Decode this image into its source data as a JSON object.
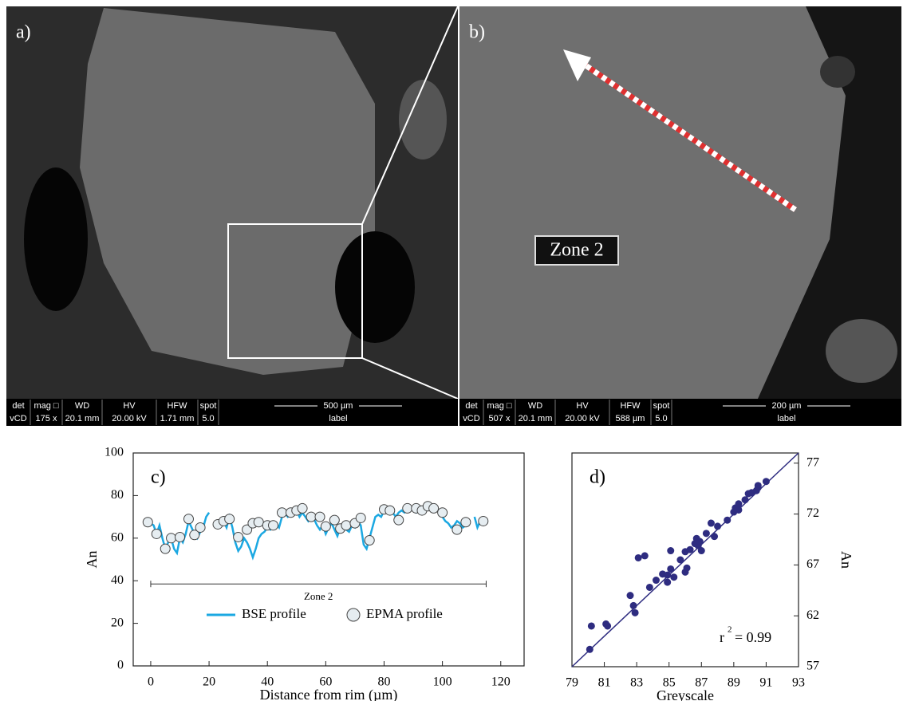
{
  "images": [
    {
      "panel_label": "a)",
      "info_bar": {
        "headers": [
          "det",
          "mag □",
          "WD",
          "HV",
          "HFW",
          "spot"
        ],
        "values": [
          "vCD",
          "175 x",
          "20.1 mm",
          "20.00 kV",
          "1.71 mm",
          "5.0"
        ],
        "scale": "500 µm",
        "scale_caption": "label"
      }
    },
    {
      "panel_label": "b)",
      "zone_label": "Zone 2",
      "info_bar": {
        "headers": [
          "det",
          "mag □",
          "WD",
          "HV",
          "HFW",
          "spot"
        ],
        "values": [
          "vCD",
          "507 x",
          "20.1 mm",
          "20.00 kV",
          "588 µm",
          "5.0"
        ],
        "scale": "200 µm",
        "scale_caption": "label"
      }
    }
  ],
  "chart_data": [
    {
      "type": "line",
      "panel_label": "c)",
      "xlabel": "Distance from rim (µm)",
      "ylabel": "An",
      "xlim": [
        -6,
        128
      ],
      "ylim": [
        0,
        100
      ],
      "xticks": [
        0,
        20,
        40,
        60,
        80,
        100,
        120
      ],
      "yticks": [
        0,
        20,
        40,
        60,
        80,
        100
      ],
      "legend": "lower center",
      "bracket": {
        "label": "Zone 2",
        "x": [
          0,
          115
        ],
        "y": 38.5
      },
      "series": [
        {
          "name": "BSE profile",
          "type": "line",
          "color": "#1ba8e2",
          "x": [
            0,
            1,
            2,
            3,
            4,
            5,
            6,
            7,
            8,
            9,
            10,
            11,
            12,
            13,
            14,
            15,
            16,
            17,
            18,
            19,
            20,
            21,
            22,
            23,
            24,
            25,
            26,
            27,
            28,
            29,
            30,
            31,
            32,
            33,
            34,
            35,
            36,
            37,
            38,
            39,
            40,
            41,
            42,
            43,
            44,
            45,
            46,
            47,
            48,
            49,
            50,
            51,
            52,
            53,
            54,
            55,
            56,
            57,
            58,
            59,
            60,
            61,
            62,
            63,
            64,
            65,
            66,
            67,
            68,
            69,
            70,
            71,
            72,
            73,
            74,
            75,
            76,
            77,
            78,
            79,
            80,
            81,
            82,
            83,
            84,
            85,
            86,
            87,
            88,
            89,
            90,
            91,
            92,
            93,
            94,
            95,
            96,
            97,
            98,
            99,
            100,
            101,
            102,
            103,
            104,
            105,
            106,
            107,
            108,
            109,
            110,
            111,
            112,
            113,
            114
          ],
          "values": [
            67,
            66,
            62,
            66,
            60,
            55,
            58,
            60,
            55,
            53,
            60,
            58,
            62,
            68,
            65,
            62,
            60,
            63,
            65,
            70,
            72,
            null,
            null,
            null,
            67,
            68,
            65,
            70,
            65,
            58,
            54,
            56,
            60,
            58,
            55,
            51,
            55,
            60,
            62,
            63,
            65,
            64,
            66,
            67,
            65,
            70,
            72,
            70,
            71,
            72,
            73,
            70,
            72,
            70,
            68,
            70,
            69,
            66,
            64,
            66,
            62,
            65,
            67,
            64,
            61,
            65,
            66,
            64,
            63,
            66,
            65,
            68,
            66,
            57,
            55,
            60,
            65,
            70,
            71,
            70,
            73,
            72,
            73,
            72,
            70,
            72,
            73,
            72,
            73,
            74,
            73,
            72,
            73,
            72,
            74,
            75,
            74,
            73,
            74,
            72,
            70,
            68,
            67,
            65,
            66,
            68,
            67,
            65,
            66,
            68,
            null,
            70,
            65,
            68,
            66
          ]
        },
        {
          "name": "EPMA profile",
          "type": "scatter",
          "color": "#e6edf1",
          "x": [
            -1,
            2,
            5,
            7,
            10,
            13,
            15,
            17,
            23,
            25,
            27,
            30,
            33,
            35,
            37,
            40,
            42,
            45,
            48,
            50,
            52,
            55,
            58,
            60,
            63,
            65,
            67,
            70,
            72,
            75,
            80,
            82,
            85,
            88,
            91,
            93,
            95,
            97,
            100,
            105,
            108,
            114
          ],
          "values": [
            67.5,
            62,
            55,
            60,
            60.5,
            69,
            61.5,
            65,
            66.5,
            68,
            69,
            60.5,
            64,
            67,
            67.5,
            66,
            66,
            72,
            72,
            73,
            74,
            70,
            70,
            65.5,
            68.5,
            64.5,
            66,
            67,
            69.5,
            59,
            73.5,
            73,
            68.5,
            74,
            74,
            73,
            75,
            74,
            72,
            64,
            67.5,
            68
          ]
        }
      ]
    },
    {
      "type": "scatter",
      "panel_label": "d)",
      "xlabel": "Greyscale",
      "ylabel": "An",
      "yaxis_side": "right",
      "xlim": [
        79,
        93
      ],
      "ylim": [
        57,
        78
      ],
      "xticks": [
        79,
        81,
        83,
        85,
        87,
        89,
        91,
        93
      ],
      "yticks": [
        57,
        62,
        67,
        72,
        77
      ],
      "color": "#2e2c80",
      "fit_line": {
        "x": [
          79,
          93
        ],
        "y": [
          57,
          78
        ]
      },
      "annotation": [
        "r",
        "2",
        "= 0.99"
      ],
      "x": [
        80.1,
        80.2,
        81.1,
        81.2,
        82.6,
        82.8,
        82.9,
        83.1,
        83.5,
        83.8,
        84.2,
        84.6,
        84.9,
        84.9,
        85.1,
        85.1,
        85.3,
        85.7,
        86.0,
        86.1,
        86.0,
        86.3,
        86.6,
        86.7,
        86.8,
        86.9,
        87.0,
        87.3,
        87.6,
        87.8,
        88.0,
        88.6,
        89.0,
        89.1,
        89.3,
        89.3,
        89.7,
        89.9,
        90.1,
        90.4,
        90.5,
        90.5,
        91.0
      ],
      "values": [
        58.7,
        61.0,
        61.2,
        61.0,
        64.0,
        63.0,
        62.3,
        67.7,
        67.9,
        64.8,
        65.5,
        66.1,
        65.3,
        66.0,
        68.4,
        66.6,
        65.8,
        67.5,
        66.3,
        66.7,
        68.3,
        68.5,
        69.1,
        69.6,
        68.9,
        69.3,
        68.4,
        70.1,
        71.1,
        69.8,
        70.8,
        71.4,
        72.2,
        72.6,
        72.4,
        73.0,
        73.4,
        74.0,
        74.1,
        74.3,
        74.6,
        74.8,
        75.2
      ]
    }
  ]
}
